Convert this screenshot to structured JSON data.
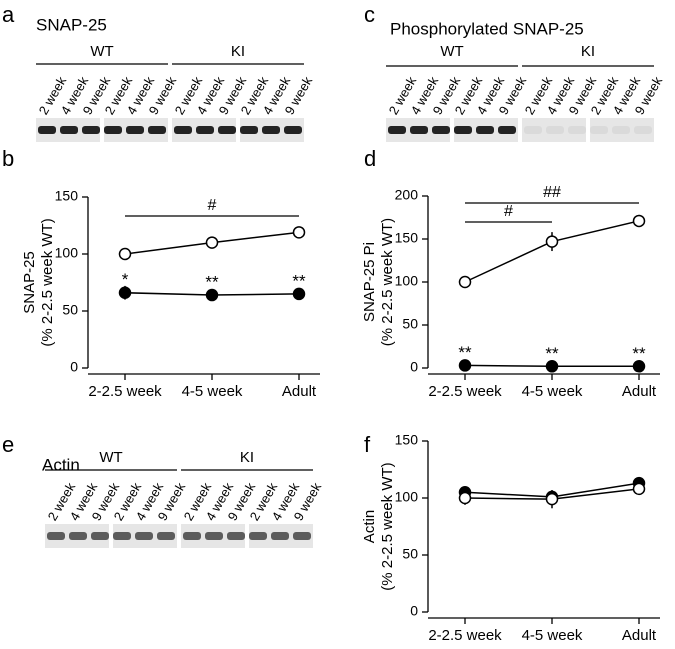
{
  "panel_labels": [
    "a",
    "b",
    "c",
    "d",
    "e",
    "f"
  ],
  "blots": [
    {
      "title": "SNAP-25",
      "groups": [
        "WT",
        "KI"
      ],
      "lanes": [
        "2 week",
        "4 week",
        "9 week",
        "2 week",
        "4 week",
        "9 week",
        "2 week",
        "4 week",
        "9 week",
        "2 week",
        "4 week",
        "9 week"
      ]
    },
    {
      "title": "Phosphorylated SNAP-25",
      "groups": [
        "WT",
        "KI"
      ],
      "lanes": [
        "2 week",
        "4 week",
        "9 week",
        "2 week",
        "4 week",
        "9 week",
        "2 week",
        "4 week",
        "9 week",
        "2 week",
        "4 week",
        "9 week"
      ]
    },
    {
      "title": "Actin",
      "groups": [
        "WT",
        "KI"
      ],
      "lanes": [
        "2 week",
        "4 week",
        "9 week",
        "2 week",
        "4 week",
        "9 week",
        "2 week",
        "4 week",
        "9 week",
        "2 week",
        "4 week",
        "9 week"
      ]
    }
  ],
  "chart_data": [
    {
      "type": "line",
      "ylabel": [
        "SNAP-25",
        "(% 2-2.5 week WT)"
      ],
      "categories": [
        "2-2.5 week",
        "4-5 week",
        "Adult"
      ],
      "ylim": [
        0,
        150
      ],
      "yticks": [
        0,
        50,
        100,
        150
      ],
      "series": [
        {
          "color": "#000000",
          "fill": "#ffffff",
          "values": [
            100,
            110,
            119
          ],
          "errors": [
            2,
            3,
            3
          ]
        },
        {
          "color": "#000000",
          "fill": "#000000",
          "values": [
            66,
            64,
            65
          ],
          "errors": [
            6,
            3,
            3
          ],
          "significance": [
            "*",
            "**",
            "**"
          ]
        }
      ],
      "comparisons": [
        {
          "label": "#",
          "from": 0,
          "to": 2
        }
      ]
    },
    {
      "type": "line",
      "ylabel": [
        "SNAP-25 Pi",
        "(% 2-2.5 week WT)"
      ],
      "categories": [
        "2-2.5 week",
        "4-5 week",
        "Adult"
      ],
      "ylim": [
        0,
        200
      ],
      "yticks": [
        0,
        50,
        100,
        150,
        200
      ],
      "series": [
        {
          "color": "#000000",
          "fill": "#ffffff",
          "values": [
            100,
            147,
            171
          ],
          "errors": [
            2,
            11,
            7
          ]
        },
        {
          "color": "#000000",
          "fill": "#000000",
          "values": [
            3,
            2,
            2
          ],
          "errors": [
            1,
            1,
            1
          ],
          "significance": [
            "**",
            "**",
            "**"
          ]
        }
      ],
      "comparisons": [
        {
          "label": "#",
          "from": 0,
          "to": 1
        },
        {
          "label": "##",
          "from": 0,
          "to": 2
        }
      ]
    },
    {
      "type": "line",
      "ylabel": [
        "Actin",
        "(% 2-2.5 week WT)"
      ],
      "categories": [
        "2-2.5 week",
        "4-5 week",
        "Adult"
      ],
      "ylim": [
        0,
        150
      ],
      "yticks": [
        0,
        50,
        100,
        150
      ],
      "series": [
        {
          "color": "#000000",
          "fill": "#000000",
          "values": [
            105,
            101,
            113
          ],
          "errors": [
            5,
            4,
            5
          ]
        },
        {
          "color": "#000000",
          "fill": "#ffffff",
          "values": [
            100,
            99,
            108
          ],
          "errors": [
            6,
            8,
            5
          ]
        }
      ],
      "comparisons": []
    }
  ]
}
